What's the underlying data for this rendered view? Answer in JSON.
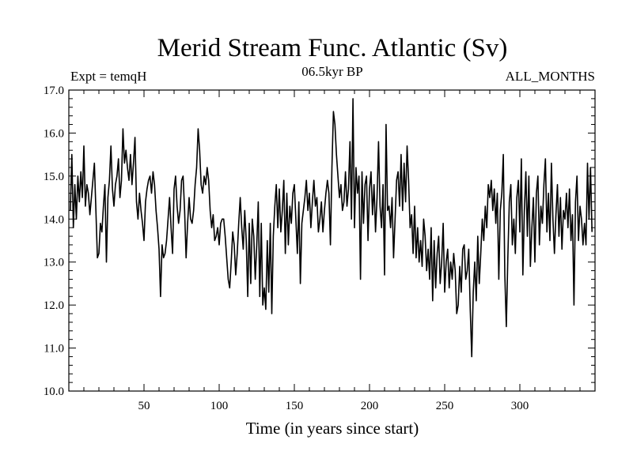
{
  "chart_data": {
    "type": "line",
    "title": "Merid Stream Func. Atlantic (Sv)",
    "subtitle_left": "Expt = temqH",
    "subtitle_center": "06.5kyr BP",
    "subtitle_right": "ALL_MONTHS",
    "xlabel": "Time (in years since start)",
    "ylabel": "",
    "xlim": [
      0,
      350
    ],
    "ylim": [
      10.0,
      17.0
    ],
    "x_ticks": [
      50,
      100,
      150,
      200,
      250,
      300
    ],
    "x_tick_labels": [
      "50",
      "100",
      "150",
      "200",
      "250",
      "300"
    ],
    "y_ticks": [
      10.0,
      11.0,
      12.0,
      13.0,
      14.0,
      15.0,
      16.0,
      17.0
    ],
    "y_tick_labels": [
      "10.0",
      "11.0",
      "12.0",
      "13.0",
      "14.0",
      "15.0",
      "16.0",
      "17.0"
    ],
    "grid": false,
    "series": [
      {
        "name": "Merid Stream Func. Atlantic",
        "color": "#000000",
        "x_start": 1,
        "x_step": 1,
        "values": [
          14.2,
          15.5,
          13.8,
          14.8,
          14.0,
          15.0,
          14.4,
          15.1,
          14.5,
          15.7,
          14.3,
          14.8,
          14.6,
          14.1,
          14.5,
          14.9,
          15.3,
          14.2,
          13.1,
          13.2,
          13.9,
          13.7,
          14.3,
          14.8,
          13.0,
          14.5,
          14.9,
          15.7,
          14.7,
          14.3,
          14.8,
          15.0,
          15.4,
          14.5,
          14.9,
          16.1,
          15.3,
          15.6,
          15.2,
          14.9,
          15.5,
          14.8,
          15.3,
          15.9,
          14.4,
          14.0,
          14.6,
          14.2,
          13.9,
          13.5,
          14.4,
          14.7,
          14.9,
          15.0,
          14.6,
          15.1,
          14.8,
          14.2,
          13.8,
          13.3,
          12.2,
          13.4,
          13.1,
          13.2,
          13.5,
          14.0,
          14.5,
          13.8,
          13.2,
          14.7,
          15.0,
          14.3,
          13.9,
          14.2,
          14.9,
          15.0,
          14.2,
          13.1,
          13.9,
          14.5,
          14.0,
          13.9,
          14.2,
          14.8,
          15.2,
          16.1,
          15.6,
          14.8,
          14.6,
          15.0,
          14.8,
          15.2,
          14.9,
          14.2,
          13.8,
          14.1,
          13.5,
          13.6,
          13.8,
          13.4,
          13.9,
          14.0,
          14.0,
          13.6,
          13.1,
          12.6,
          12.4,
          13.0,
          13.7,
          13.4,
          12.7,
          13.2,
          13.9,
          14.5,
          13.8,
          13.3,
          14.2,
          13.5,
          12.2,
          13.9,
          12.5,
          14.0,
          13.6,
          12.6,
          13.4,
          14.4,
          12.2,
          13.9,
          12.0,
          12.4,
          11.9,
          13.5,
          12.3,
          13.9,
          11.8,
          13.6,
          14.3,
          14.8,
          13.8,
          14.7,
          13.7,
          14.2,
          14.9,
          13.2,
          14.6,
          13.4,
          14.3,
          13.9,
          14.6,
          14.8,
          14.0,
          13.2,
          14.4,
          12.5,
          13.9,
          14.2,
          14.5,
          14.9,
          14.2,
          14.6,
          13.8,
          14.4,
          14.9,
          14.3,
          14.5,
          13.7,
          14.0,
          14.4,
          13.7,
          14.2,
          14.6,
          14.9,
          14.6,
          13.4,
          15.2,
          16.5,
          16.2,
          15.5,
          15.0,
          14.5,
          14.8,
          14.2,
          14.4,
          15.1,
          14.3,
          14.7,
          15.8,
          14.0,
          16.8,
          13.8,
          15.2,
          14.6,
          15.0,
          12.6,
          15.1,
          13.9,
          14.8,
          15.0,
          13.5,
          14.7,
          15.1,
          14.1,
          14.8,
          13.7,
          14.5,
          15.8,
          14.3,
          13.8,
          14.8,
          12.7,
          16.2,
          14.2,
          14.3,
          13.8,
          14.5,
          13.1,
          14.0,
          14.9,
          15.1,
          14.3,
          15.5,
          14.2,
          15.3,
          14.4,
          15.7,
          14.9,
          13.8,
          14.1,
          13.2,
          14.3,
          13.1,
          13.8,
          13.0,
          13.5,
          12.9,
          14.0,
          13.6,
          12.8,
          13.3,
          12.6,
          13.8,
          12.1,
          13.5,
          12.4,
          13.2,
          13.6,
          12.5,
          13.0,
          13.9,
          12.3,
          13.0,
          13.3,
          12.4,
          13.0,
          12.6,
          13.2,
          12.8,
          11.8,
          12.0,
          12.9,
          12.3,
          13.3,
          13.4,
          12.6,
          12.8,
          13.3,
          11.9,
          10.8,
          12.3,
          13.0,
          12.1,
          13.6,
          12.5,
          13.2,
          14.0,
          13.5,
          14.3,
          13.8,
          14.8,
          14.5,
          14.9,
          14.2,
          14.7,
          13.9,
          14.6,
          12.6,
          14.2,
          14.6,
          15.5,
          12.7,
          11.5,
          13.1,
          14.4,
          14.8,
          13.4,
          14.0,
          13.2,
          14.5,
          14.9,
          13.7,
          15.4,
          12.7,
          14.2,
          15.1,
          13.6,
          15.0,
          12.9,
          13.8,
          14.5,
          13.0,
          14.6,
          15.0,
          13.4,
          14.3,
          13.9,
          14.8,
          15.4,
          13.7,
          14.6,
          13.5,
          15.3,
          14.0,
          13.2,
          14.1,
          14.8,
          13.6,
          14.5,
          13.3,
          14.2,
          14.0,
          14.6,
          13.8,
          14.7,
          13.5,
          14.1,
          12.0,
          14.4,
          15.0,
          13.5,
          14.3,
          14.0,
          13.4,
          13.9,
          13.4,
          15.3,
          14.0,
          15.2,
          13.7
        ]
      }
    ]
  }
}
